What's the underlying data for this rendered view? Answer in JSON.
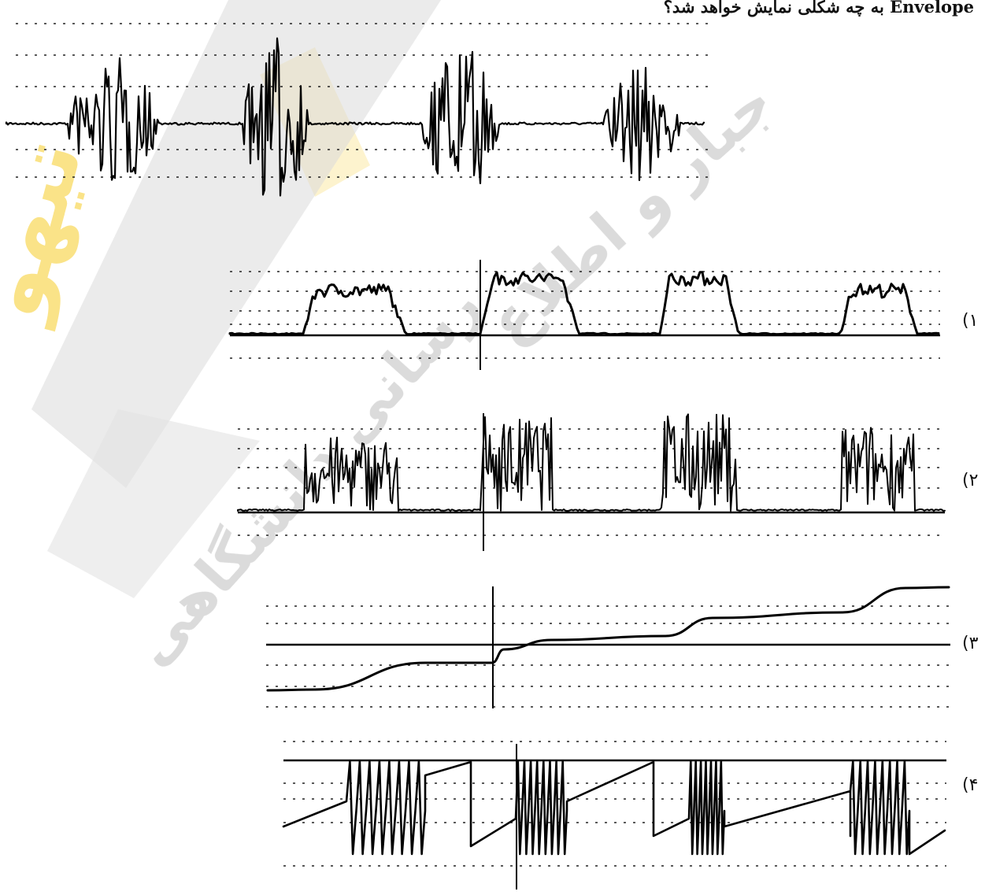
{
  "caption": "Envelope به چه شکلی نمایش خواهد شد؟",
  "options": [
    {
      "label": "(۱"
    },
    {
      "label": "(۲"
    },
    {
      "label": "(۳"
    },
    {
      "label": "(۴"
    }
  ],
  "watermark": {
    "left_text": "تیهو",
    "mid_text": "رسانی دانشگاهی",
    "top_text": "جبار و اطلاع",
    "colors": {
      "gold": "#f5c400",
      "gray": "#bdbdbd"
    }
  }
}
